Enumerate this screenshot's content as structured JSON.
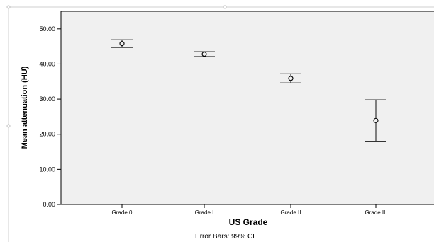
{
  "chart_data": {
    "type": "errorbar",
    "title": "",
    "xlabel": "US Grade",
    "ylabel": "Mean attenuation (HU)",
    "footnote": "Error Bars: 99% CI",
    "categories": [
      "Grade 0",
      "Grade I",
      "Grade II",
      "Grade III"
    ],
    "ylim": [
      0,
      55
    ],
    "yticks": [
      {
        "value": 0,
        "label": "0.00"
      },
      {
        "value": 10,
        "label": "10.00"
      },
      {
        "value": 20,
        "label": "20.00"
      },
      {
        "value": 30,
        "label": "30.00"
      },
      {
        "value": 40,
        "label": "40.00"
      },
      {
        "value": 50,
        "label": "50.00"
      }
    ],
    "points": [
      {
        "category": "Grade 0",
        "mean": 45.8,
        "lower": 44.7,
        "upper": 46.9
      },
      {
        "category": "Grade I",
        "mean": 42.8,
        "lower": 42.1,
        "upper": 43.5
      },
      {
        "category": "Grade II",
        "mean": 35.9,
        "lower": 34.6,
        "upper": 37.2
      },
      {
        "category": "Grade III",
        "mean": 23.9,
        "lower": 18.0,
        "upper": 29.8
      }
    ],
    "grid": false,
    "legend": "none",
    "colors": {
      "plot_background": "#f0f0f0",
      "axis": "#000000",
      "marker": "#000000",
      "error_bar": "#333333"
    }
  }
}
